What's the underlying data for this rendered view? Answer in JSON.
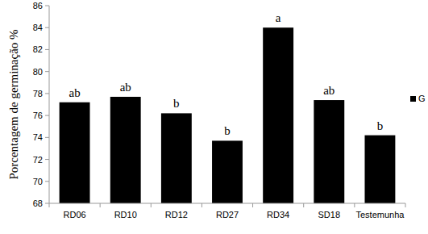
{
  "chart_data": {
    "type": "bar",
    "y_label": "Porcentagem de germinação %",
    "categories": [
      "RD06",
      "RD10",
      "RD12",
      "RD27",
      "RD34",
      "SD18",
      "Testemunha"
    ],
    "series": [
      {
        "name": "G",
        "color": "#000000",
        "values": [
          77.2,
          77.7,
          76.2,
          73.7,
          84.0,
          77.4,
          74.2
        ]
      }
    ],
    "annotations": [
      "ab",
      "ab",
      "b",
      "b",
      "a",
      "ab",
      "b"
    ],
    "ylim": [
      68,
      86
    ],
    "yticks": [
      68,
      70,
      72,
      74,
      76,
      78,
      80,
      82,
      84,
      86
    ],
    "grid": false,
    "legend": "right"
  }
}
